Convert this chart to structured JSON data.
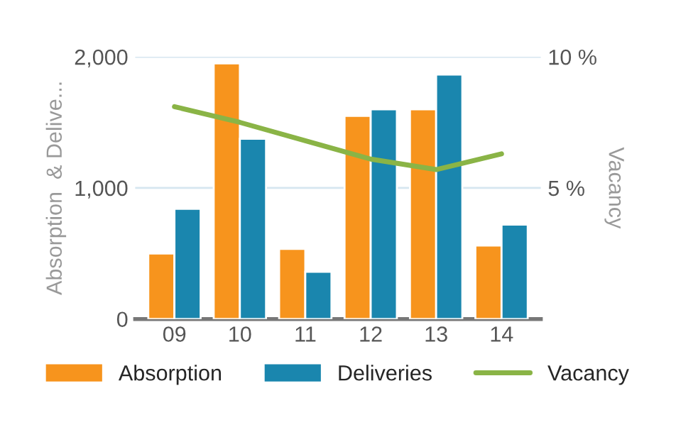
{
  "chart_data": {
    "type": "bar",
    "ylabel": "Absorption  & Delive...",
    "y2label": "Vacancy",
    "categories": [
      "09",
      "10",
      "11",
      "12",
      "13",
      "14"
    ],
    "series": [
      {
        "name": "Absorption",
        "color": "#f7941d",
        "values": [
          500,
          1950,
          535,
          1550,
          1600,
          560
        ]
      },
      {
        "name": "Deliveries",
        "color": "#1a86ae",
        "values": [
          840,
          1375,
          360,
          1600,
          1865,
          720
        ]
      },
      {
        "name": "Vacancy",
        "type": "line",
        "axis": "y2",
        "color": "#8ab446",
        "values": [
          8.1,
          7.5,
          6.8,
          6.1,
          5.7,
          6.3
        ]
      }
    ],
    "ylim": [
      0,
      2000
    ],
    "yticks": [
      {
        "value": 0,
        "label": "0"
      },
      {
        "value": 1000,
        "label": "1,000"
      },
      {
        "value": 2000,
        "label": "2,000"
      }
    ],
    "y2lim": [
      0,
      10
    ],
    "y2ticks": [
      {
        "value": 5,
        "label": "5 %"
      },
      {
        "value": 10,
        "label": "10 %"
      }
    ],
    "grid": "y",
    "legend": "bottom"
  }
}
